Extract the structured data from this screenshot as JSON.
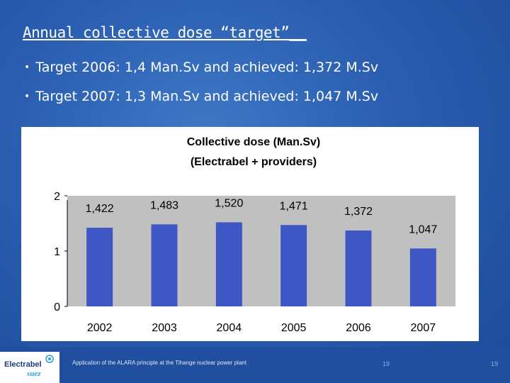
{
  "slide": {
    "title": "Annual collective dose “target”__",
    "bullets": [
      "Target 2006: 1,4 Man.Sv and achieved: 1,372 M.Sv",
      "Target 2007: 1,3 Man.Sv and achieved: 1,047 M.Sv"
    ]
  },
  "chart_data": {
    "type": "bar",
    "title": "Collective dose (Man.Sv)",
    "subtitle": "(Electrabel + providers)",
    "categories": [
      "2002",
      "2003",
      "2004",
      "2005",
      "2006",
      "2007"
    ],
    "values": [
      1.422,
      1.483,
      1.52,
      1.471,
      1.372,
      1.047
    ],
    "value_labels": [
      "1,422",
      "1,483",
      "1,520",
      "1,471",
      "1,372",
      "1,047"
    ],
    "y_ticks": [
      "0",
      "1",
      "2"
    ],
    "ylim": [
      0,
      2
    ],
    "grid": false,
    "bar_color": "#3f57c4",
    "plot_bg": "#c0c0c0"
  },
  "footer": {
    "logo_text": "Electrabel",
    "logo_sub": "suez",
    "caption": "Application of the ALARA principle at the Tihange nuclear power plant",
    "page_number_center": "19",
    "page_number_right": "19"
  }
}
